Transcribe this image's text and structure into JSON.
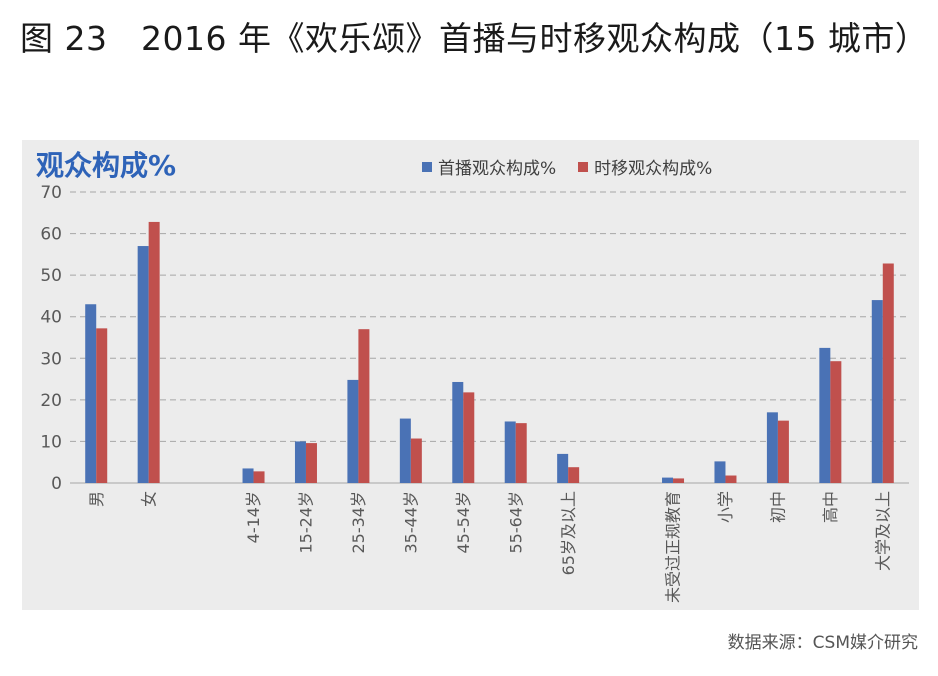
{
  "figure_title": "图 23　2016 年《欢乐颂》首播与时移观众构成（15 城市）",
  "source": "数据来源：CSM媒介研究",
  "colors": {
    "series_1": "#4a72b5",
    "series_2": "#c0504d",
    "panel_bg": "#ececec",
    "title": "#2e63b8"
  },
  "chart_data": {
    "type": "bar",
    "title": "观众构成%",
    "ylim": [
      0,
      70
    ],
    "yticks": [
      0,
      10,
      20,
      30,
      40,
      50,
      60,
      70
    ],
    "grid": true,
    "legend_position": "top-center",
    "categories": [
      "男",
      "女",
      "",
      "4-14岁",
      "15-24岁",
      "25-34岁",
      "35-44岁",
      "45-54岁",
      "55-64岁",
      "65岁及以上",
      "",
      "未受过正规教育",
      "小学",
      "初中",
      "高中",
      "大学及以上"
    ],
    "series": [
      {
        "name": "首播观众构成%",
        "values": [
          43.0,
          57.0,
          null,
          3.5,
          10.0,
          24.8,
          15.5,
          24.3,
          14.8,
          7.0,
          null,
          1.3,
          5.2,
          17.0,
          32.5,
          44.0
        ]
      },
      {
        "name": "时移观众构成%",
        "values": [
          37.2,
          62.8,
          null,
          2.8,
          9.6,
          37.0,
          10.7,
          21.8,
          14.4,
          3.8,
          null,
          1.1,
          1.8,
          15.0,
          29.3,
          52.8
        ]
      }
    ]
  }
}
